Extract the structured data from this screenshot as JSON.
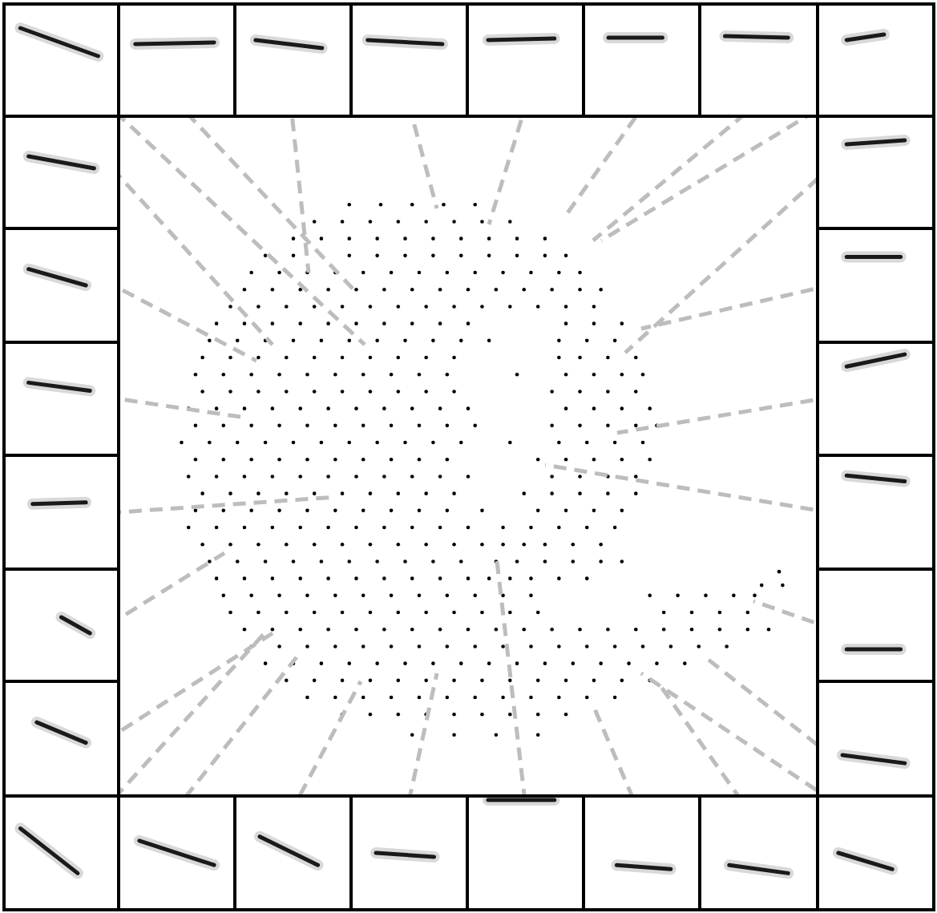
{
  "chart_data": {
    "type": "scatter",
    "color": "#000000",
    "marker": "circle",
    "tick_labels": false,
    "xlim": [
      0,
      100
    ],
    "ylim": [
      0,
      100
    ],
    "x": [
      33,
      37.5,
      42,
      46.5,
      51,
      28,
      32,
      36,
      40,
      44,
      48,
      52,
      56,
      25,
      29,
      33,
      37,
      41,
      45,
      49,
      53,
      57,
      61,
      21,
      25,
      29,
      33,
      37,
      41,
      45,
      49,
      53,
      57,
      61,
      64,
      19,
      23,
      27,
      31,
      35,
      39,
      43,
      47,
      51,
      55,
      59,
      63,
      66,
      18,
      22,
      26,
      30,
      34,
      38,
      42,
      46,
      50,
      54,
      58,
      62,
      66,
      69,
      16,
      20,
      24,
      28,
      32,
      36,
      40,
      44,
      48,
      52,
      56,
      60,
      64,
      68,
      14,
      18,
      22,
      26,
      30,
      34,
      38,
      42,
      46,
      50,
      64,
      68,
      72,
      13,
      17,
      21,
      25,
      29,
      33,
      37,
      41,
      45,
      49,
      53,
      63,
      67,
      71,
      12,
      16,
      20,
      24,
      28,
      32,
      36,
      40,
      44,
      48,
      63,
      66,
      70,
      74,
      11,
      15,
      19,
      23,
      27,
      31,
      35,
      39,
      43,
      47,
      57,
      64,
      68,
      72,
      75,
      12,
      16,
      20,
      24,
      28,
      32,
      36,
      40,
      44,
      48,
      62,
      66,
      70,
      74,
      10,
      14,
      18,
      22,
      26,
      30,
      34,
      38,
      42,
      46,
      50,
      64,
      68,
      72,
      76,
      11,
      15,
      19,
      23,
      27,
      31,
      35,
      39,
      43,
      47,
      51,
      62,
      66,
      70,
      74,
      77,
      9,
      13,
      17,
      21,
      25,
      29,
      33,
      37,
      41,
      45,
      49,
      56,
      63,
      67,
      71,
      75,
      11,
      15,
      19,
      23,
      27,
      31,
      35,
      39,
      43,
      47,
      60,
      64,
      68,
      72,
      76,
      10,
      14,
      18,
      22,
      26,
      30,
      34,
      38,
      42,
      46,
      50,
      62,
      66,
      70,
      74,
      12,
      16,
      20,
      24,
      28,
      32,
      36,
      40,
      44,
      48,
      58,
      62,
      66,
      70,
      74,
      11,
      15,
      19,
      23,
      27,
      31,
      35,
      39,
      43,
      47,
      52,
      60,
      64,
      68,
      72,
      10,
      14,
      18,
      22,
      26,
      30,
      34,
      38,
      42,
      46,
      50,
      55,
      59,
      63,
      67,
      71,
      12,
      16,
      20,
      24,
      28,
      32,
      36,
      40,
      44,
      48,
      52,
      55,
      58,
      61,
      65,
      69,
      13,
      17,
      21,
      25,
      29,
      33,
      37,
      41,
      45,
      49,
      54,
      57,
      61,
      65,
      69,
      72,
      94.5,
      14,
      18,
      22,
      26,
      30,
      34,
      38,
      42,
      46,
      50,
      53,
      56,
      59,
      63,
      67,
      92,
      95,
      15,
      19,
      23,
      27,
      31,
      35,
      39,
      43,
      47,
      51,
      55,
      59,
      76,
      80,
      84,
      88,
      91,
      16,
      20,
      24,
      28,
      32,
      36,
      40,
      44,
      48,
      52,
      56,
      60,
      78,
      82,
      86,
      90,
      18,
      22,
      26,
      30,
      34,
      38,
      42,
      46,
      50,
      54,
      58,
      62,
      66,
      70,
      74,
      78,
      82,
      86,
      90,
      93,
      19,
      23,
      27,
      31,
      35,
      39,
      43,
      47,
      51,
      55,
      59,
      63,
      67,
      71,
      75,
      79,
      83,
      87,
      21,
      25,
      29,
      33,
      37,
      41,
      45,
      49,
      53,
      57,
      61,
      65,
      69,
      73,
      77,
      81,
      24,
      28,
      32,
      36,
      40,
      44,
      48,
      52,
      56,
      60,
      64,
      68,
      72,
      76,
      27,
      31,
      35,
      39,
      43,
      47,
      51,
      55,
      59,
      63,
      67,
      71,
      32,
      36,
      40,
      44,
      48,
      52,
      56,
      60,
      64,
      42,
      48,
      54,
      60
    ],
    "values": [
      87,
      87,
      87,
      87,
      87,
      84.5,
      84.5,
      84.5,
      84.5,
      84.5,
      84.5,
      84.5,
      84.5,
      82,
      82,
      82,
      82,
      82,
      82,
      82,
      82,
      82,
      82,
      79.5,
      79.5,
      79.5,
      79.5,
      79.5,
      79.5,
      79.5,
      79.5,
      79.5,
      79.5,
      79.5,
      79.5,
      77,
      77,
      77,
      77,
      77,
      77,
      77,
      77,
      77,
      77,
      77,
      77,
      77,
      74.5,
      74.5,
      74.5,
      74.5,
      74.5,
      74.5,
      74.5,
      74.5,
      74.5,
      74.5,
      74.5,
      74.5,
      74.5,
      74.5,
      72,
      72,
      72,
      72,
      72,
      72,
      72,
      72,
      72,
      72,
      72,
      72,
      72,
      72,
      69.5,
      69.5,
      69.5,
      69.5,
      69.5,
      69.5,
      69.5,
      69.5,
      69.5,
      69.5,
      69.5,
      69.5,
      69.5,
      67,
      67,
      67,
      67,
      67,
      67,
      67,
      67,
      67,
      67,
      67,
      67,
      67,
      67,
      64.5,
      64.5,
      64.5,
      64.5,
      64.5,
      64.5,
      64.5,
      64.5,
      64.5,
      64.5,
      64.5,
      64.5,
      64.5,
      64.5,
      62,
      62,
      62,
      62,
      62,
      62,
      62,
      62,
      62,
      62,
      62,
      62,
      62,
      62,
      62,
      59.5,
      59.5,
      59.5,
      59.5,
      59.5,
      59.5,
      59.5,
      59.5,
      59.5,
      59.5,
      59.5,
      59.5,
      59.5,
      59.5,
      57,
      57,
      57,
      57,
      57,
      57,
      57,
      57,
      57,
      57,
      57,
      57,
      57,
      57,
      57,
      54.5,
      54.5,
      54.5,
      54.5,
      54.5,
      54.5,
      54.5,
      54.5,
      54.5,
      54.5,
      54.5,
      54.5,
      54.5,
      54.5,
      54.5,
      54.5,
      52,
      52,
      52,
      52,
      52,
      52,
      52,
      52,
      52,
      52,
      52,
      52,
      52,
      52,
      52,
      52,
      49.5,
      49.5,
      49.5,
      49.5,
      49.5,
      49.5,
      49.5,
      49.5,
      49.5,
      49.5,
      49.5,
      49.5,
      49.5,
      49.5,
      49.5,
      47,
      47,
      47,
      47,
      47,
      47,
      47,
      47,
      47,
      47,
      47,
      47,
      47,
      47,
      47,
      44.5,
      44.5,
      44.5,
      44.5,
      44.5,
      44.5,
      44.5,
      44.5,
      44.5,
      44.5,
      44.5,
      44.5,
      44.5,
      44.5,
      44.5,
      42,
      42,
      42,
      42,
      42,
      42,
      42,
      42,
      42,
      42,
      42,
      42,
      42,
      42,
      42,
      39.5,
      39.5,
      39.5,
      39.5,
      39.5,
      39.5,
      39.5,
      39.5,
      39.5,
      39.5,
      39.5,
      39.5,
      39.5,
      39.5,
      39.5,
      39.5,
      37,
      37,
      37,
      37,
      37,
      37,
      37,
      37,
      37,
      37,
      37,
      37,
      37,
      37,
      37,
      37,
      34.5,
      34.5,
      34.5,
      34.5,
      34.5,
      34.5,
      34.5,
      34.5,
      34.5,
      34.5,
      34.5,
      34.5,
      34.5,
      34.5,
      34.5,
      34.5,
      33,
      32,
      32,
      32,
      32,
      32,
      32,
      32,
      32,
      32,
      32,
      32,
      32,
      32,
      32,
      32,
      31,
      31,
      29.5,
      29.5,
      29.5,
      29.5,
      29.5,
      29.5,
      29.5,
      29.5,
      29.5,
      29.5,
      29.5,
      29.5,
      29.5,
      29.5,
      29.5,
      29.5,
      29.5,
      27,
      27,
      27,
      27,
      27,
      27,
      27,
      27,
      27,
      27,
      27,
      27,
      27,
      27,
      27,
      27,
      24.5,
      24.5,
      24.5,
      24.5,
      24.5,
      24.5,
      24.5,
      24.5,
      24.5,
      24.5,
      24.5,
      24.5,
      24.5,
      24.5,
      24.5,
      24.5,
      24.5,
      24.5,
      24.5,
      24.5,
      22,
      22,
      22,
      22,
      22,
      22,
      22,
      22,
      22,
      22,
      22,
      22,
      22,
      22,
      22,
      22,
      22,
      22,
      19.5,
      19.5,
      19.5,
      19.5,
      19.5,
      19.5,
      19.5,
      19.5,
      19.5,
      19.5,
      19.5,
      19.5,
      19.5,
      19.5,
      19.5,
      19.5,
      17,
      17,
      17,
      17,
      17,
      17,
      17,
      17,
      17,
      17,
      17,
      17,
      17,
      17,
      14.5,
      14.5,
      14.5,
      14.5,
      14.5,
      14.5,
      14.5,
      14.5,
      14.5,
      14.5,
      14.5,
      14.5,
      12,
      12,
      12,
      12,
      12,
      12,
      12,
      12,
      12,
      9,
      9,
      9,
      9
    ]
  }
}
